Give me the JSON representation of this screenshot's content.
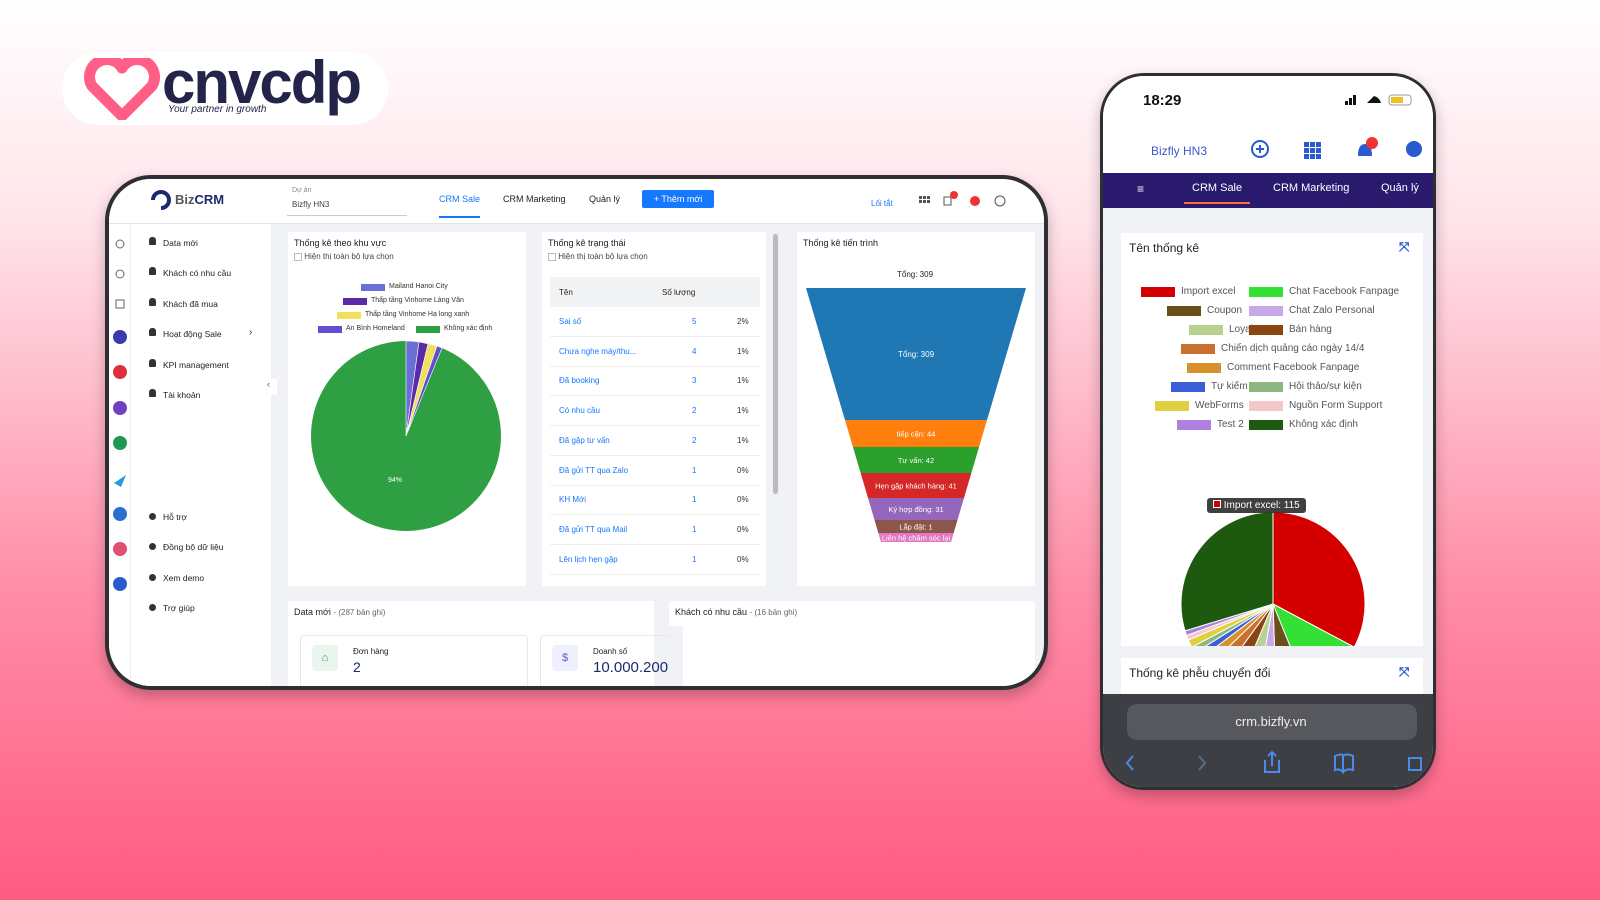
{
  "logo": {
    "brand": "cnvcdp",
    "tagline": "Your partner in growth"
  },
  "desktop": {
    "brand_prefix": "Biz",
    "brand_suffix": "CRM",
    "project_label": "Dự án",
    "project": "Bizfly HN3",
    "tabs": [
      "CRM Sale",
      "CRM Marketing",
      "Quản lý"
    ],
    "add_button": "Thêm mới",
    "shortcut": "Lối tắt",
    "menu": [
      "Data mới",
      "Khách có nhu cầu",
      "Khách đã mua",
      "Hoạt động Sale",
      "KPI management",
      "Tài khoản"
    ],
    "menu_bottom": [
      "Hỗ trợ",
      "Đồng bộ dữ liệu",
      "Xem demo",
      "Trợ giúp"
    ],
    "region_panel": {
      "title": "Thống kê theo khu vực",
      "checkbox": "Hiện thị toàn bộ lựa chọn",
      "legend": [
        {
          "name": "Mailand Hanoi City",
          "color": "#6a6fd8"
        },
        {
          "name": "Thấp tầng Vinhome Làng Vân",
          "color": "#5a2aa8"
        },
        {
          "name": "Thấp tầng Vinhome Hạ long xanh",
          "color": "#f0e060"
        },
        {
          "name": "An Bình Homeland",
          "color": "#6050d0"
        },
        {
          "name": "Không xác định",
          "color": "#2ea043"
        }
      ],
      "pie_label": "94%"
    },
    "status_panel": {
      "title": "Thống kê trạng thái",
      "checkbox": "Hiện thị toàn bộ lựa chọn",
      "columns": [
        "Tên",
        "Số lượng"
      ],
      "rows": [
        [
          "Sai số",
          5,
          "2%"
        ],
        [
          "Chưa nghe máy/thu...",
          4,
          "1%"
        ],
        [
          "Đã booking",
          3,
          "1%"
        ],
        [
          "Có nhu cầu",
          2,
          "1%"
        ],
        [
          "Đã gặp tư vấn",
          2,
          "1%"
        ],
        [
          "Đã gửi TT qua Zalo",
          1,
          "0%"
        ],
        [
          "KH Mới",
          1,
          "0%"
        ],
        [
          "Đã gửi TT qua Mail",
          1,
          "0%"
        ],
        [
          "Lên lịch hẹn gặp",
          1,
          "0%"
        ]
      ]
    },
    "progress_panel": {
      "title": "Thống kê tiến trình",
      "total": "Tổng: 309",
      "stages": [
        {
          "label": "Tổng: 309",
          "color": "#1f77b4"
        },
        {
          "label": "tiếp cận: 44",
          "color": "#ff7f0e"
        },
        {
          "label": "Tư vấn: 42",
          "color": "#2ca02c"
        },
        {
          "label": "Hẹn gặp khách hàng: 41",
          "color": "#d62728"
        },
        {
          "label": "Ký hợp đồng: 31",
          "color": "#9467bd"
        },
        {
          "label": "Lắp đặt: 1",
          "color": "#8c564b"
        },
        {
          "label": "Liên hệ chăm sóc lại",
          "color": "#e377c2"
        }
      ]
    },
    "new_data": {
      "title": "Data mới",
      "count": "- (287 bản ghi)",
      "cards": [
        {
          "label": "Đơn hàng",
          "value": "2"
        },
        {
          "label": "Doanh số",
          "value": "10.000.200"
        }
      ]
    },
    "need_customer": {
      "title": "Khách có nhu cầu",
      "count": "- (16 bản ghi)"
    }
  },
  "phone": {
    "time": "18:29",
    "account": "Bizfly HN3",
    "tabs": [
      "CRM Sale",
      "CRM Marketing",
      "Quản lý"
    ],
    "stats_title": "Tên thống kê",
    "legend": [
      {
        "name": "Import excel",
        "color": "#d40000"
      },
      {
        "name": "Chat Facebook Fanpage",
        "color": "#33e033"
      },
      {
        "name": "Coupon",
        "color": "#6b4f1a"
      },
      {
        "name": "Chat Zalo Personal",
        "color": "#c8a8e8"
      },
      {
        "name": "Loyalty",
        "color": "#b8d090"
      },
      {
        "name": "Bán hàng",
        "color": "#8b4513"
      },
      {
        "name": "Chiến dịch quảng cáo ngày 14/4",
        "color": "#c87030"
      },
      {
        "name": "Comment Facebook Fanpage",
        "color": "#d8902a"
      },
      {
        "name": "Tự kiếm",
        "color": "#3c5ed8"
      },
      {
        "name": "Hội thảo/sự kiện",
        "color": "#8cb880"
      },
      {
        "name": "WebForms",
        "color": "#e0d040"
      },
      {
        "name": "Nguồn Form Support",
        "color": "#f4c8c8"
      },
      {
        "name": "Test 2",
        "color": "#b080e0"
      },
      {
        "name": "Không xác định",
        "color": "#1d5a10"
      }
    ],
    "tooltip": "Import excel: 115",
    "funnel_title": "Thống kê phễu chuyển đổi",
    "url": "crm.bizfly.vn"
  }
}
